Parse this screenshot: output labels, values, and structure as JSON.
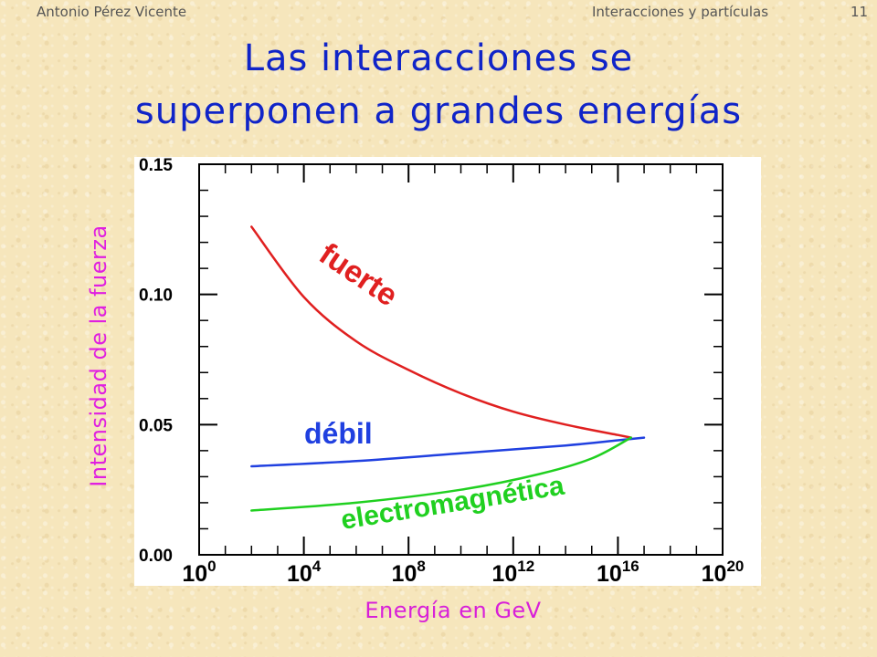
{
  "header": {
    "author": "Antonio Pérez Vicente",
    "topic": "Interacciones y partículas",
    "page": "11"
  },
  "title": {
    "line1": "Las interacciones se",
    "line2": "superponen a grandes energías"
  },
  "colors": {
    "title": "#1024c8",
    "axis_label": "#e020e0",
    "strong": "#e02020",
    "weak": "#2040e0",
    "electromagnetic": "#20d020"
  },
  "chart_data": {
    "type": "line",
    "xlabel": "Energía en GeV",
    "ylabel": "Intensidad de la fuerza",
    "x_scale": "log10",
    "xlim": [
      0,
      20
    ],
    "ylim": [
      0.0,
      0.15
    ],
    "x_ticks": [
      {
        "base": "10",
        "exp": "0",
        "value": 0
      },
      {
        "base": "10",
        "exp": "4",
        "value": 4
      },
      {
        "base": "10",
        "exp": "8",
        "value": 8
      },
      {
        "base": "10",
        "exp": "12",
        "value": 12
      },
      {
        "base": "10",
        "exp": "16",
        "value": 16
      },
      {
        "base": "10",
        "exp": "20",
        "value": 20
      }
    ],
    "y_ticks": [
      "0.00",
      "0.05",
      "0.10",
      "0.15"
    ],
    "y_tick_values": [
      0.0,
      0.05,
      0.1,
      0.15
    ],
    "grid": false,
    "series": [
      {
        "name": "fuerte",
        "color": "#e02020",
        "x": [
          2,
          4,
          6,
          8,
          10,
          12,
          14,
          16,
          16.5
        ],
        "y": [
          0.126,
          0.099,
          0.082,
          0.071,
          0.062,
          0.055,
          0.05,
          0.046,
          0.045
        ]
      },
      {
        "name": "débil",
        "color": "#2040e0",
        "x": [
          2,
          6,
          10,
          14,
          16,
          17
        ],
        "y": [
          0.034,
          0.036,
          0.039,
          0.042,
          0.044,
          0.045
        ]
      },
      {
        "name": "electromagnética",
        "color": "#20d020",
        "x": [
          2,
          6,
          10,
          13,
          15,
          16.5
        ],
        "y": [
          0.017,
          0.02,
          0.025,
          0.031,
          0.037,
          0.045
        ]
      }
    ],
    "annotations": [
      "fuerte",
      "débil",
      "electromagnética"
    ]
  }
}
